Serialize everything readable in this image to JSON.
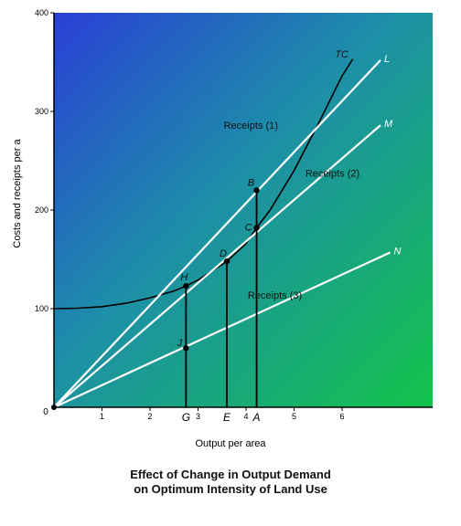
{
  "chart_data": {
    "type": "line",
    "title": "",
    "caption_line1": "Effect of Change in Output Demand",
    "caption_line2": "on Optimum Intensity of Land Use",
    "xlabel": "Output per area",
    "ylabel": "Costs and receipts per a",
    "xlim": [
      0,
      7.2
    ],
    "ylim": [
      0,
      400
    ],
    "x_ticks": [
      1,
      2,
      3,
      4,
      5,
      6
    ],
    "y_ticks": [
      100,
      200,
      300,
      400
    ],
    "origin_label": "0",
    "x_point_labels": [
      {
        "label": "G",
        "x": 2.75
      },
      {
        "label": "E",
        "x": 3.6
      },
      {
        "label": "A",
        "x": 4.22
      }
    ],
    "series": [
      {
        "name": "TC",
        "kind": "curve",
        "color": "#000000",
        "points": [
          [
            0,
            100
          ],
          [
            0.5,
            100.5
          ],
          [
            1,
            102
          ],
          [
            1.5,
            105.5
          ],
          [
            2,
            111
          ],
          [
            2.5,
            118
          ],
          [
            2.75,
            123
          ],
          [
            3,
            129
          ],
          [
            3.6,
            148
          ],
          [
            4,
            166
          ],
          [
            4.22,
            182
          ],
          [
            4.5,
            200
          ],
          [
            5,
            240
          ],
          [
            5.5,
            287
          ],
          [
            6,
            336
          ],
          [
            6.22,
            353
          ]
        ]
      },
      {
        "name": "Receipts (1)",
        "end_label": "L",
        "kind": "line",
        "color": "#ffffff",
        "points": [
          [
            0,
            0
          ],
          [
            6.8,
            352
          ]
        ]
      },
      {
        "name": "Receipts (2)",
        "end_label": "M",
        "kind": "line",
        "color": "#ffffff",
        "points": [
          [
            0,
            0
          ],
          [
            6.8,
            286
          ]
        ]
      },
      {
        "name": "Receipts (3)",
        "end_label": "N",
        "kind": "line",
        "color": "#ffffff",
        "points": [
          [
            0,
            0
          ],
          [
            7.0,
            157
          ]
        ]
      }
    ],
    "points": [
      {
        "label": "B",
        "x": 4.22,
        "y": 220
      },
      {
        "label": "C",
        "x": 4.22,
        "y": 182
      },
      {
        "label": "D",
        "x": 3.6,
        "y": 148
      },
      {
        "label": "H",
        "x": 2.75,
        "y": 123
      },
      {
        "label": "J",
        "x": 2.75,
        "y": 60
      }
    ],
    "background_gradient": [
      "#2a3fd6",
      "#1d8fa8",
      "#13c34a"
    ]
  }
}
